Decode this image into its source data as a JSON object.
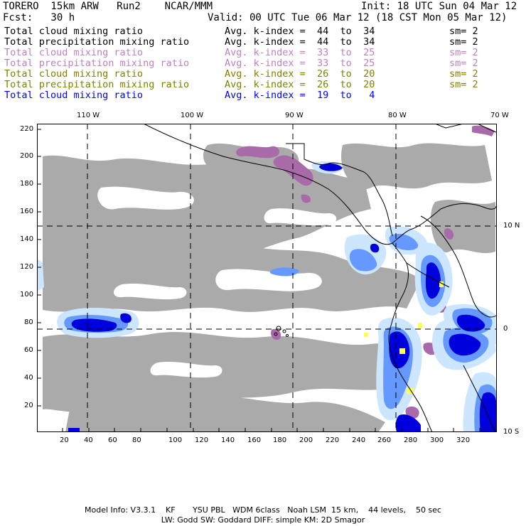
{
  "header": {
    "model": "TORERO  15km ARW   Run2    NCAR/MMM",
    "init": "Init: 18 UTC Sun 04 Mar 12",
    "fcst": "Fcst:   30 h",
    "valid": "Valid: 00 UTC Tue 06 Mar 12 (18 CST Mon 05 Mar 12)"
  },
  "legend": [
    {
      "field": "Total cloud mixing ratio",
      "avg": "Avg. k-index =  44  to  34",
      "sm": "sm= 2",
      "color": "#000000"
    },
    {
      "field": "Total precipitation mixing ratio",
      "avg": "Avg. k-index =  44  to  34",
      "sm": "sm= 2",
      "color": "#000000"
    },
    {
      "field": "Total cloud mixing ratio",
      "avg": "Avg. k-index =  33  to  25",
      "sm": "sm= 2",
      "color": "#c080c0"
    },
    {
      "field": "Total precipitation mixing ratio",
      "avg": "Avg. k-index =  33  to  25",
      "sm": "sm= 2",
      "color": "#c080c0"
    },
    {
      "field": "Total cloud mixing ratio",
      "avg": "Avg. k-index =  26  to  20",
      "sm": "sm= 2",
      "color": "#808000"
    },
    {
      "field": "Total precipitation mixing ratio",
      "avg": "Avg. k-index =  26  to  20",
      "sm": "sm= 2",
      "color": "#808000"
    },
    {
      "field": "Total cloud mixing ratio",
      "avg": "Avg. k-index =  19  to   4",
      "sm": "",
      "color": "#0000ff"
    }
  ],
  "map": {
    "lon_labels": [
      "110 W",
      "100 W",
      "90 W",
      "80 W",
      "70 W"
    ],
    "lat_labels": [
      "10 N",
      "0",
      "10 S"
    ],
    "x_ticks": [
      "20",
      "40",
      "60",
      "80",
      "100",
      "120",
      "140",
      "160",
      "180",
      "200",
      "220",
      "240",
      "260",
      "280",
      "300",
      "320"
    ],
    "y_ticks": [
      "220",
      "200",
      "180",
      "160",
      "140",
      "120",
      "100",
      "80",
      "60",
      "40",
      "20"
    ],
    "colors": {
      "grey": "#aaaaaa",
      "purple": "#a86aa8",
      "light_blue": "#cce6ff",
      "mid_blue": "#6699ff",
      "dark_blue": "#0000dd",
      "yellow": "#ffff55"
    }
  },
  "footer": {
    "line1": "Model Info: V3.3.1    KF       YSU PBL   WDM 6class   Noah LSM  15 km,    44 levels,    50 sec",
    "line2": "LW: Godd SW: Goddard DIFF: simple KM: 2D Smagor"
  }
}
